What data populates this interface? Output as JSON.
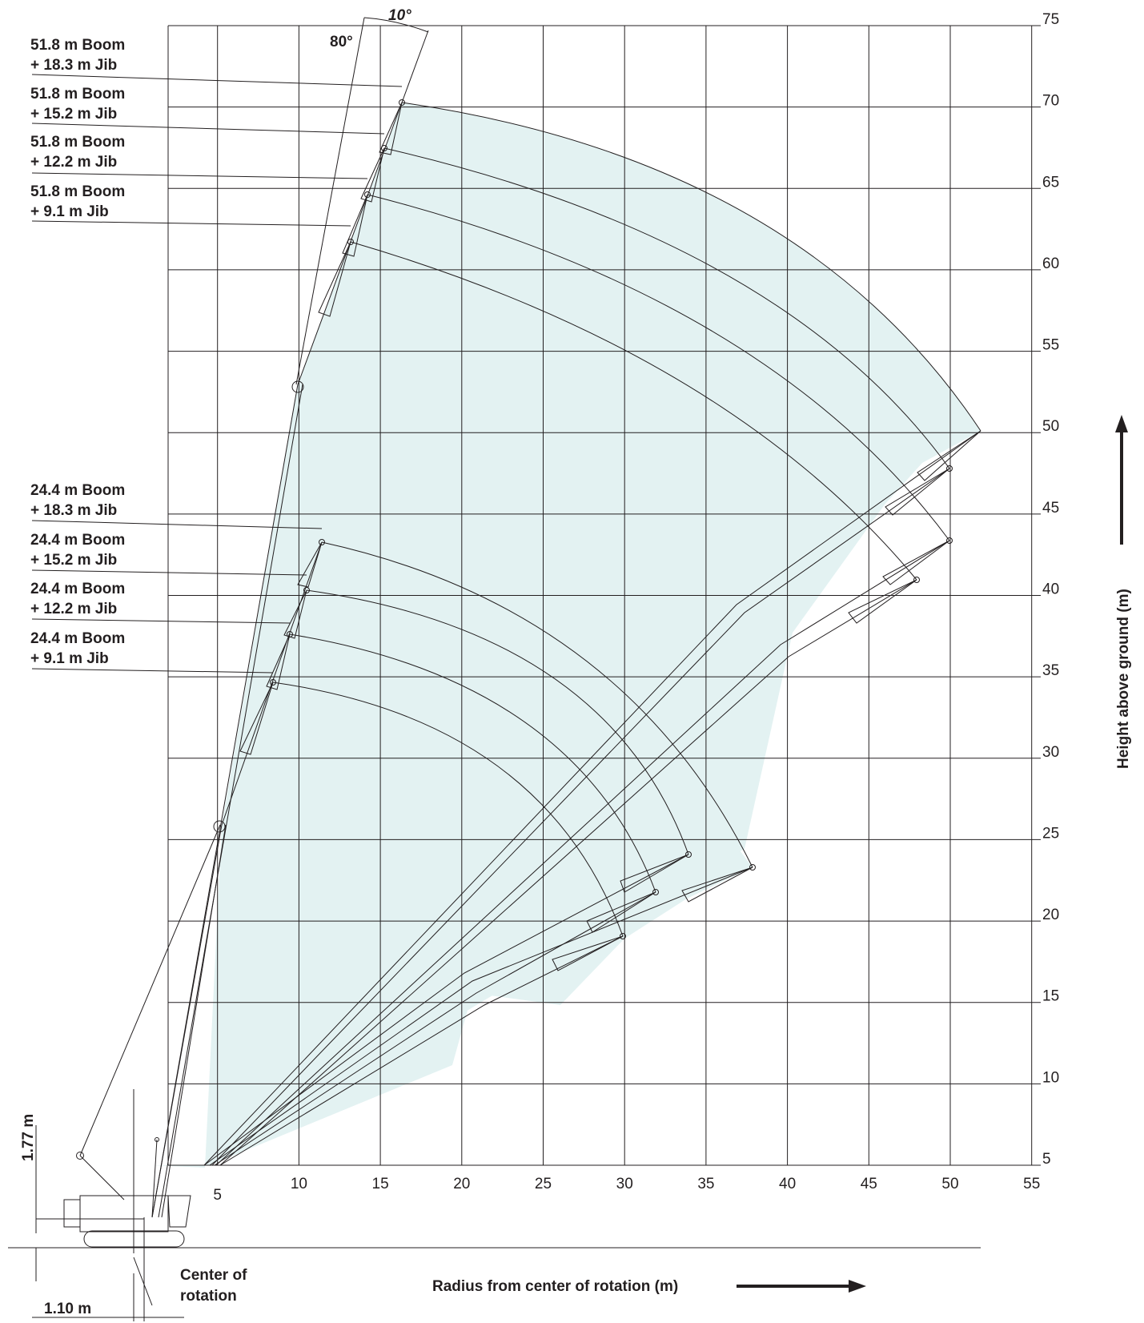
{
  "colors": {
    "envelope": "#e3f2f2",
    "line": "#231f20"
  },
  "angles": {
    "boom_angle": "80°",
    "jib_offset": "10°"
  },
  "dimensions": {
    "pivot_height": "1.77 m",
    "pivot_offset": "1.10 m",
    "center_of_rotation": "Center of\nrotation"
  },
  "axes": {
    "xlabel": "Radius from center of rotation (m)",
    "ylabel": "Height above ground (m)",
    "x_ticks": [
      "5",
      "10",
      "15",
      "20",
      "25",
      "30",
      "35",
      "40",
      "45",
      "50",
      "55"
    ],
    "y_ticks": [
      "5",
      "10",
      "15",
      "20",
      "25",
      "30",
      "35",
      "40",
      "45",
      "50",
      "55",
      "60",
      "65",
      "70",
      "75"
    ]
  },
  "labels_51": [
    {
      "line1": "51.8 m Boom",
      "line2": "+ 18.3 m Jib"
    },
    {
      "line1": "51.8 m Boom",
      "line2": "+ 15.2 m Jib"
    },
    {
      "line1": "51.8 m Boom",
      "line2": "+ 12.2 m Jib"
    },
    {
      "line1": "51.8 m Boom",
      "line2": "+ 9.1 m Jib"
    }
  ],
  "labels_24": [
    {
      "line1": "24.4 m Boom",
      "line2": "+ 18.3 m Jib"
    },
    {
      "line1": "24.4 m Boom",
      "line2": "+ 15.2 m Jib"
    },
    {
      "line1": "24.4 m Boom",
      "line2": "+ 12.2 m Jib"
    },
    {
      "line1": "24.4 m Boom",
      "line2": "+ 9.1 m Jib"
    }
  ]
}
